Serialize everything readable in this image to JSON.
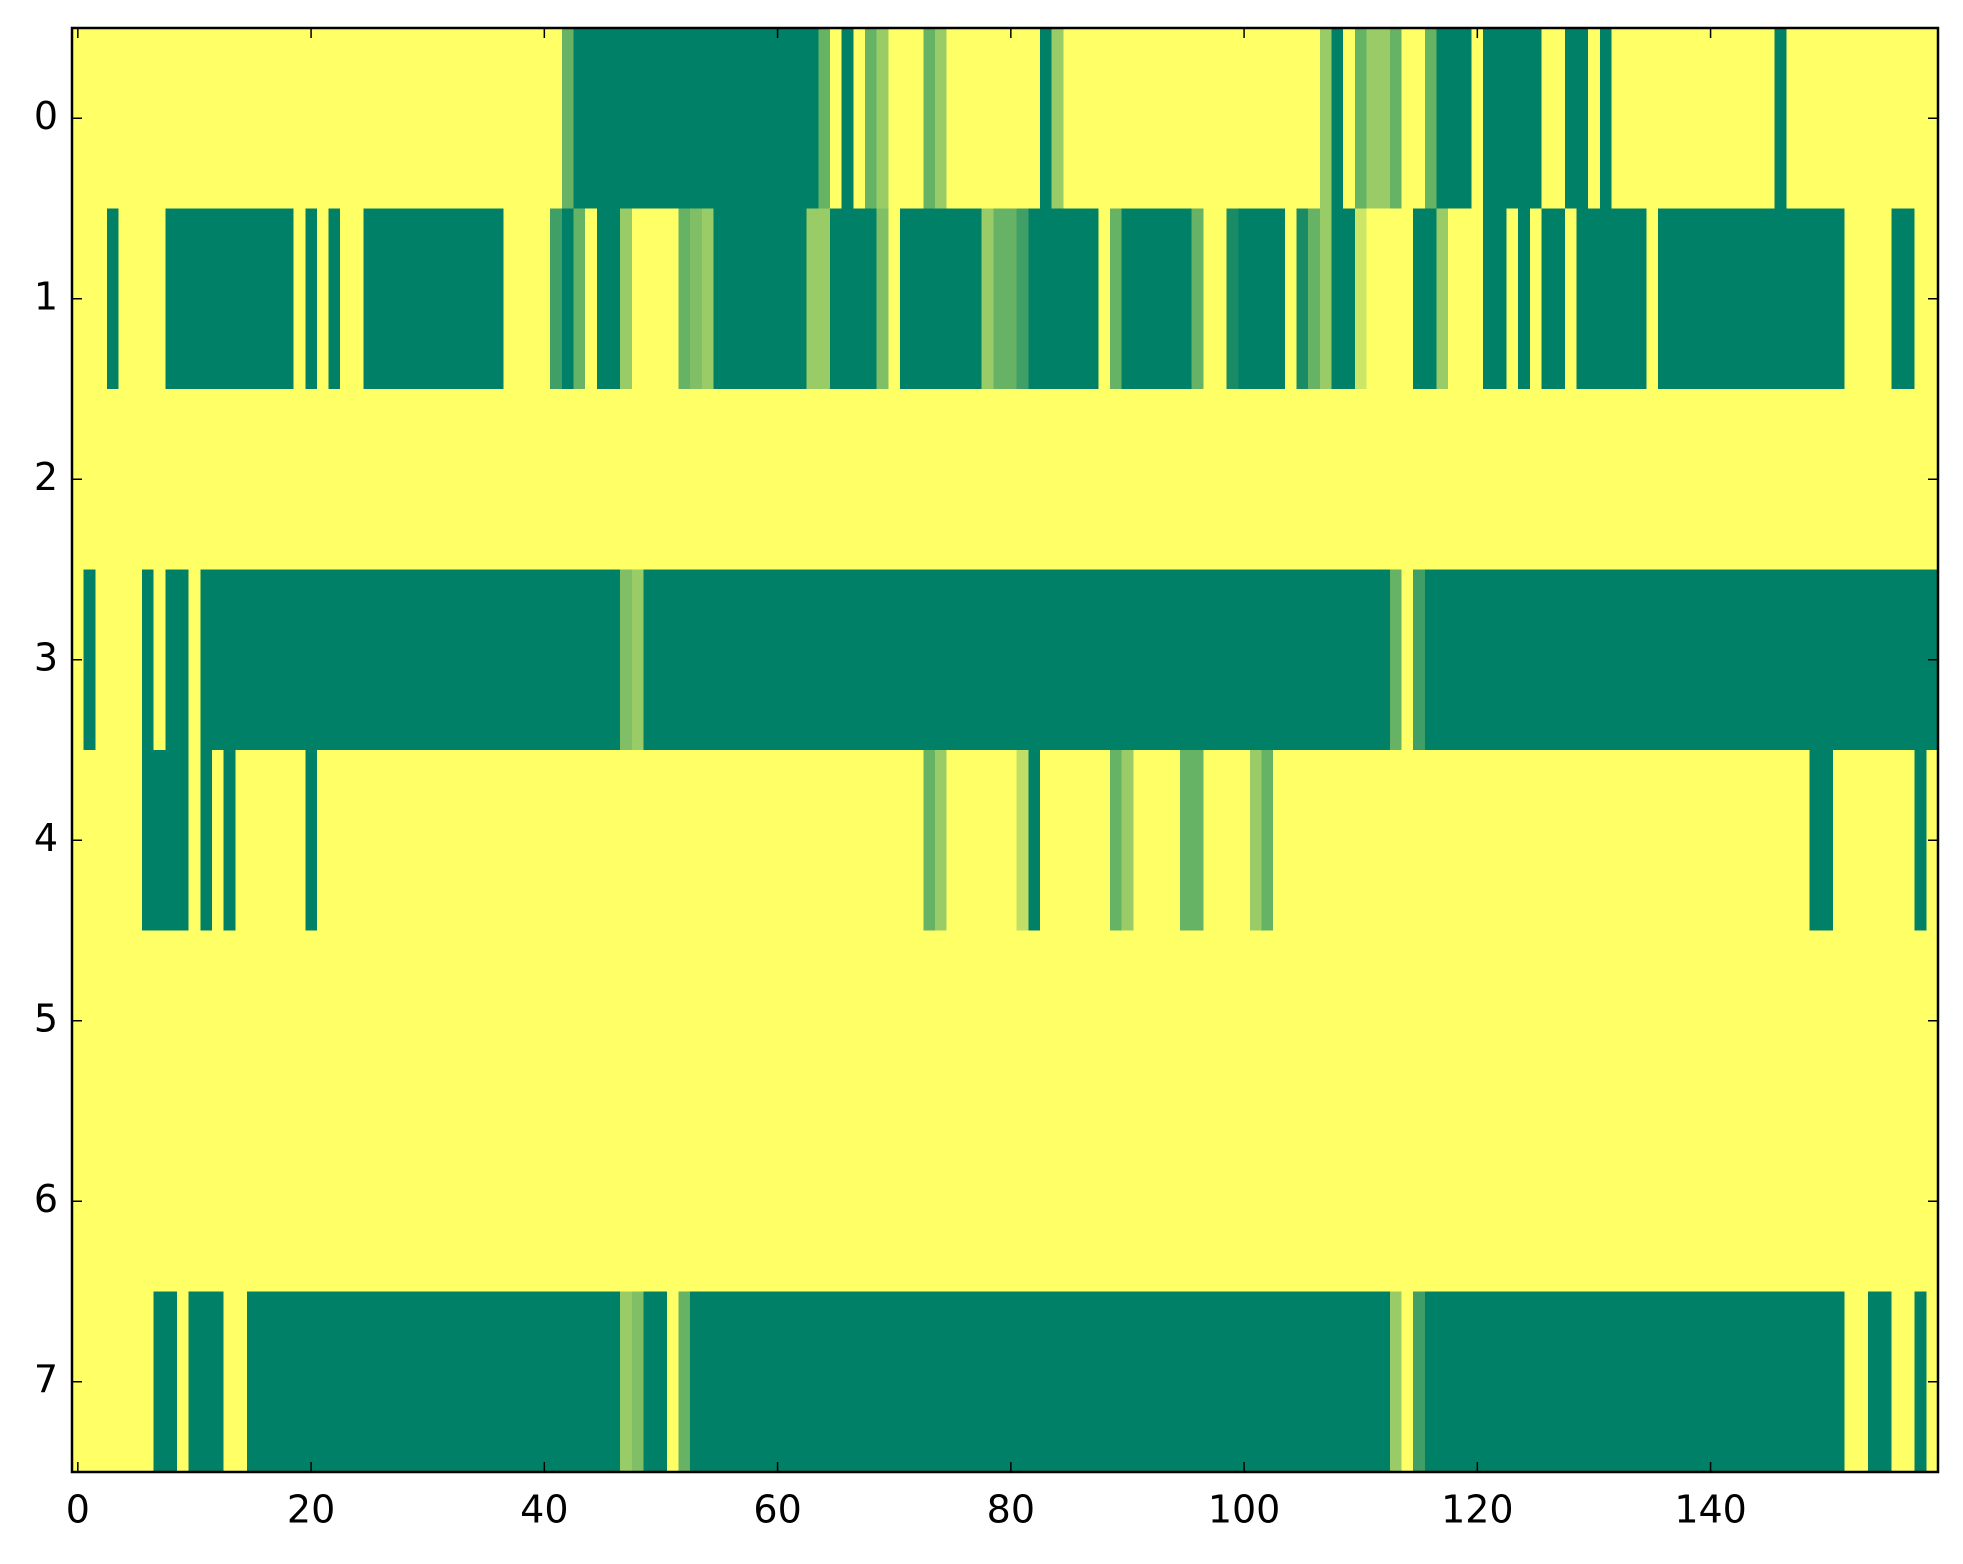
{
  "chart_data": {
    "type": "heatmap",
    "colormap": "summer_r",
    "clim": [
      0,
      1
    ],
    "xlim": [
      -0.5,
      159.5
    ],
    "ylim": [
      7.5,
      -0.5
    ],
    "xticks": [
      0,
      20,
      40,
      60,
      80,
      100,
      120,
      140
    ],
    "yticks": [
      0,
      1,
      2,
      3,
      4,
      5,
      6,
      7
    ],
    "values": [
      [
        0,
        0,
        0,
        0,
        0,
        0,
        0,
        0,
        0,
        0,
        0,
        0,
        0,
        0,
        0,
        0,
        0,
        0,
        0,
        0,
        0,
        0,
        0,
        0,
        0,
        0,
        0,
        0,
        0,
        0,
        0,
        0,
        0,
        0,
        0,
        0,
        0,
        0,
        0,
        0,
        0,
        0,
        0.6,
        1,
        1,
        1,
        1,
        1,
        1,
        1,
        1,
        1,
        1,
        1,
        1,
        1,
        1,
        1,
        1,
        1,
        1,
        1,
        1,
        1,
        0.6,
        0,
        1,
        0,
        0.6,
        0.4,
        0,
        0,
        0,
        0.6,
        0.4,
        0,
        0,
        0,
        0,
        0,
        0,
        0,
        0,
        1,
        0.4,
        0,
        0,
        0,
        0,
        0,
        0,
        0,
        0,
        0,
        0,
        0,
        0,
        0,
        0,
        0,
        0,
        0,
        0,
        0,
        0,
        0,
        0,
        0.4,
        1,
        0,
        0.6,
        0.4,
        0.4,
        0.6,
        0,
        0,
        0.6,
        1,
        1,
        1,
        0,
        1,
        1,
        1,
        1,
        1,
        0,
        0,
        1,
        1,
        0,
        1,
        0,
        0,
        0,
        0,
        0,
        0,
        0,
        0,
        0,
        0,
        0,
        0,
        0,
        0,
        1,
        0,
        0,
        0,
        0,
        0,
        0,
        0,
        0,
        0,
        0,
        0,
        0,
        0
      ],
      [
        0,
        0,
        0,
        1,
        0,
        0,
        0,
        0,
        1,
        1,
        1,
        1,
        1,
        1,
        1,
        1,
        1,
        1,
        1,
        0,
        1,
        0,
        1,
        0,
        0,
        1,
        1,
        1,
        1,
        1,
        1,
        1,
        1,
        1,
        1,
        1,
        1,
        0,
        0,
        0,
        0,
        0.75,
        1,
        0.6,
        0,
        1,
        1,
        0.4,
        0,
        0,
        0,
        0,
        0.6,
        0.5,
        0.4,
        1,
        1,
        1,
        1,
        1,
        1,
        1,
        1,
        0.4,
        0.4,
        1,
        1,
        1,
        1,
        0.5,
        0,
        1,
        1,
        1,
        1,
        1,
        1,
        1,
        0.4,
        0.6,
        0.6,
        0.75,
        1,
        1,
        1,
        1,
        1,
        1,
        0,
        0.6,
        1,
        1,
        1,
        1,
        1,
        1,
        0.6,
        0,
        0,
        0.9,
        1,
        1,
        1,
        1,
        0,
        0.9,
        0.6,
        0.4,
        1,
        1,
        0.2,
        0,
        0,
        0,
        0,
        1,
        1,
        0.4,
        0,
        0,
        0,
        1,
        1,
        0,
        1,
        0,
        1,
        1,
        0,
        1,
        1,
        1,
        1,
        1,
        1,
        0,
        1,
        1,
        1,
        1,
        1,
        1,
        1,
        1,
        1,
        1,
        1,
        1,
        1,
        1,
        1,
        1,
        0,
        0,
        0,
        0,
        1,
        1,
        0,
        0
      ],
      [
        0,
        0,
        0,
        0,
        0,
        0,
        0,
        0,
        0,
        0,
        0,
        0,
        0,
        0,
        0,
        0,
        0,
        0,
        0,
        0,
        0,
        0,
        0,
        0,
        0,
        0,
        0,
        0,
        0,
        0,
        0,
        0,
        0,
        0,
        0,
        0,
        0,
        0,
        0,
        0,
        0,
        0,
        0,
        0,
        0,
        0,
        0,
        0,
        0,
        0,
        0,
        0,
        0,
        0,
        0,
        0,
        0,
        0,
        0,
        0,
        0,
        0,
        0,
        0,
        0,
        0,
        0,
        0,
        0,
        0,
        0,
        0,
        0,
        0,
        0,
        0,
        0,
        0,
        0,
        0,
        0,
        0,
        0,
        0,
        0,
        0,
        0,
        0,
        0,
        0,
        0,
        0,
        0,
        0,
        0,
        0,
        0,
        0,
        0,
        0,
        0,
        0,
        0,
        0,
        0,
        0,
        0,
        0,
        0,
        0,
        0,
        0,
        0,
        0,
        0,
        0,
        0,
        0,
        0,
        0,
        0,
        0,
        0,
        0,
        0,
        0,
        0,
        0,
        0,
        0,
        0,
        0,
        0,
        0,
        0,
        0,
        0,
        0,
        0,
        0,
        0,
        0,
        0,
        0,
        0,
        0,
        0,
        0,
        0,
        0,
        0,
        0,
        0,
        0,
        0,
        0,
        0,
        0,
        0,
        0
      ],
      [
        0,
        1,
        0,
        0,
        0,
        0,
        1,
        0,
        1,
        1,
        0,
        1,
        1,
        1,
        1,
        1,
        1,
        1,
        1,
        1,
        1,
        1,
        1,
        1,
        1,
        1,
        1,
        1,
        1,
        1,
        1,
        1,
        1,
        1,
        1,
        1,
        1,
        1,
        1,
        1,
        1,
        1,
        1,
        1,
        1,
        1,
        1,
        0.5,
        0.4,
        1,
        1,
        1,
        1,
        1,
        1,
        1,
        1,
        1,
        1,
        1,
        1,
        1,
        1,
        1,
        1,
        1,
        1,
        1,
        1,
        1,
        1,
        1,
        1,
        1,
        1,
        1,
        1,
        1,
        1,
        1,
        1,
        1,
        1,
        1,
        1,
        1,
        1,
        1,
        1,
        1,
        1,
        1,
        1,
        1,
        1,
        1,
        1,
        1,
        1,
        1,
        1,
        1,
        1,
        1,
        1,
        1,
        1,
        1,
        1,
        1,
        1,
        1,
        1,
        0.6,
        0,
        0.75,
        1,
        1,
        1,
        1,
        1,
        1,
        1,
        1,
        1,
        1,
        1,
        1,
        1,
        1,
        1,
        1,
        1,
        1,
        1,
        1,
        1,
        1,
        1,
        1,
        1,
        1,
        1,
        1,
        1,
        1,
        1,
        1,
        1,
        1,
        1,
        1,
        1,
        1,
        1,
        1,
        1,
        1,
        1,
        1
      ],
      [
        0,
        0,
        0,
        0,
        0,
        0,
        1,
        1,
        1,
        1,
        0,
        1,
        0,
        1,
        0,
        0,
        0,
        0,
        0,
        0,
        1,
        0,
        0,
        0,
        0,
        0,
        0,
        0,
        0,
        0,
        0,
        0,
        0,
        0,
        0,
        0,
        0,
        0,
        0,
        0,
        0,
        0,
        0,
        0,
        0,
        0,
        0,
        0,
        0,
        0,
        0,
        0,
        0,
        0,
        0,
        0,
        0,
        0,
        0,
        0,
        0,
        0,
        0,
        0,
        0,
        0,
        0,
        0,
        0,
        0,
        0,
        0,
        0,
        0.6,
        0.4,
        0,
        0,
        0,
        0,
        0,
        0,
        0.25,
        1,
        0,
        0,
        0,
        0,
        0,
        0,
        0.6,
        0.4,
        0,
        0,
        0,
        0,
        0.6,
        0.6,
        0,
        0,
        0,
        0,
        0.4,
        0.6,
        0,
        0,
        0,
        0,
        0,
        0,
        0,
        0,
        0,
        0,
        0,
        0,
        0,
        0,
        0,
        0,
        0,
        0,
        0,
        0,
        0,
        0,
        0,
        0,
        0,
        0,
        0,
        0,
        0,
        0,
        0,
        0,
        0,
        0,
        0,
        0,
        0,
        0,
        0,
        0,
        0,
        0,
        0,
        0,
        0,
        0,
        1,
        1,
        0,
        0,
        0,
        0,
        0,
        0,
        0,
        1,
        0
      ],
      [
        0,
        0,
        0,
        0,
        0,
        0,
        0,
        0,
        0,
        0,
        0,
        0,
        0,
        0,
        0,
        0,
        0,
        0,
        0,
        0,
        0,
        0,
        0,
        0,
        0,
        0,
        0,
        0,
        0,
        0,
        0,
        0,
        0,
        0,
        0,
        0,
        0,
        0,
        0,
        0,
        0,
        0,
        0,
        0,
        0,
        0,
        0,
        0,
        0,
        0,
        0,
        0,
        0,
        0,
        0,
        0,
        0,
        0,
        0,
        0,
        0,
        0,
        0,
        0,
        0,
        0,
        0,
        0,
        0,
        0,
        0,
        0,
        0,
        0,
        0,
        0,
        0,
        0,
        0,
        0,
        0,
        0,
        0,
        0,
        0,
        0,
        0,
        0,
        0,
        0,
        0,
        0,
        0,
        0,
        0,
        0,
        0,
        0,
        0,
        0,
        0,
        0,
        0,
        0,
        0,
        0,
        0,
        0,
        0,
        0,
        0,
        0,
        0,
        0,
        0,
        0,
        0,
        0,
        0,
        0,
        0,
        0,
        0,
        0,
        0,
        0,
        0,
        0,
        0,
        0,
        0,
        0,
        0,
        0,
        0,
        0,
        0,
        0,
        0,
        0,
        0,
        0,
        0,
        0,
        0,
        0,
        0,
        0,
        0,
        0,
        0,
        0,
        0,
        0,
        0,
        0,
        0,
        0,
        0,
        0
      ],
      [
        0,
        0,
        0,
        0,
        0,
        0,
        0,
        0,
        0,
        0,
        0,
        0,
        0,
        0,
        0,
        0,
        0,
        0,
        0,
        0,
        0,
        0,
        0,
        0,
        0,
        0,
        0,
        0,
        0,
        0,
        0,
        0,
        0,
        0,
        0,
        0,
        0,
        0,
        0,
        0,
        0,
        0,
        0,
        0,
        0,
        0,
        0,
        0,
        0,
        0,
        0,
        0,
        0,
        0,
        0,
        0,
        0,
        0,
        0,
        0,
        0,
        0,
        0,
        0,
        0,
        0,
        0,
        0,
        0,
        0,
        0,
        0,
        0,
        0,
        0,
        0,
        0,
        0,
        0,
        0,
        0,
        0,
        0,
        0,
        0,
        0,
        0,
        0,
        0,
        0,
        0,
        0,
        0,
        0,
        0,
        0,
        0,
        0,
        0,
        0,
        0,
        0,
        0,
        0,
        0,
        0,
        0,
        0,
        0,
        0,
        0,
        0,
        0,
        0,
        0,
        0,
        0,
        0,
        0,
        0,
        0,
        0,
        0,
        0,
        0,
        0,
        0,
        0,
        0,
        0,
        0,
        0,
        0,
        0,
        0,
        0,
        0,
        0,
        0,
        0,
        0,
        0,
        0,
        0,
        0,
        0,
        0,
        0,
        0,
        0,
        0,
        0,
        0,
        0,
        0,
        0,
        0,
        0,
        0,
        0
      ],
      [
        0,
        0,
        0,
        0,
        0,
        0,
        0,
        1,
        1,
        0,
        1,
        1,
        1,
        0,
        0,
        1,
        1,
        1,
        1,
        1,
        1,
        1,
        1,
        1,
        1,
        1,
        1,
        1,
        1,
        1,
        1,
        1,
        1,
        1,
        1,
        1,
        1,
        1,
        1,
        1,
        1,
        1,
        1,
        1,
        1,
        1,
        1,
        0.4,
        0.5,
        1,
        1,
        0,
        0.6,
        1,
        1,
        1,
        1,
        1,
        1,
        1,
        1,
        1,
        1,
        1,
        1,
        1,
        1,
        1,
        1,
        1,
        1,
        1,
        1,
        1,
        1,
        1,
        1,
        1,
        1,
        1,
        1,
        1,
        1,
        1,
        1,
        1,
        1,
        1,
        1,
        1,
        1,
        1,
        1,
        1,
        1,
        1,
        1,
        1,
        1,
        1,
        1,
        1,
        1,
        1,
        1,
        1,
        1,
        1,
        1,
        1,
        1,
        1,
        1,
        0.4,
        0,
        0.75,
        1,
        1,
        1,
        1,
        1,
        1,
        1,
        1,
        1,
        1,
        1,
        1,
        1,
        1,
        1,
        1,
        1,
        1,
        1,
        1,
        1,
        1,
        1,
        1,
        1,
        1,
        1,
        1,
        1,
        1,
        1,
        1,
        1,
        1,
        1,
        1,
        0,
        0,
        1,
        1,
        0,
        0,
        1,
        0
      ]
    ]
  }
}
